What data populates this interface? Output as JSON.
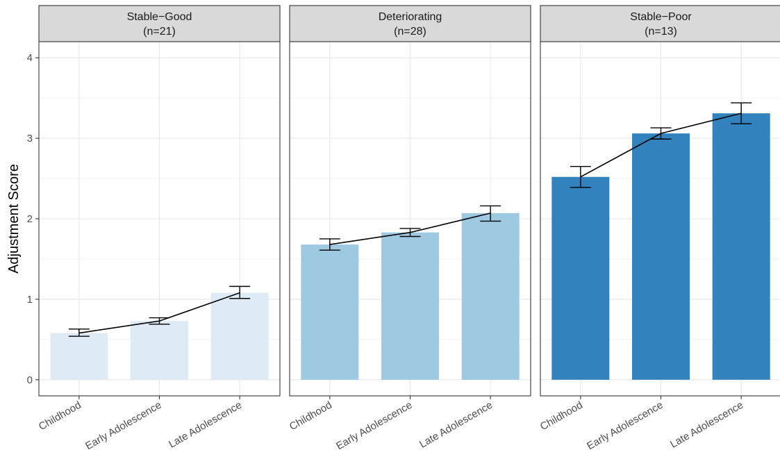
{
  "chart_data": {
    "type": "bar",
    "ylabel": "Adjustment Score",
    "xlabel": "",
    "ylim": [
      -0.2,
      4.2
    ],
    "yticks": [
      0,
      1,
      2,
      3,
      4
    ],
    "categories": [
      "Childhood",
      "Early Adolescence",
      "Late Adolescence"
    ],
    "grid": true,
    "legend": "none",
    "panels": [
      {
        "title": "Stable-Good",
        "subtitle": "(n=21)",
        "color": "#deebf7",
        "values": [
          0.58,
          0.73,
          1.08
        ],
        "error_low": [
          0.54,
          0.69,
          1.01
        ],
        "error_high": [
          0.63,
          0.77,
          1.16
        ]
      },
      {
        "title": "Deteriorating",
        "subtitle": "(n=28)",
        "color": "#9ecae1",
        "values": [
          1.68,
          1.83,
          2.07
        ],
        "error_low": [
          1.61,
          1.78,
          1.97
        ],
        "error_high": [
          1.75,
          1.88,
          2.16
        ]
      },
      {
        "title": "Stable-Poor",
        "subtitle": "(n=13)",
        "color": "#3182bd",
        "values": [
          2.52,
          3.06,
          3.31
        ],
        "error_low": [
          2.39,
          2.99,
          3.18
        ],
        "error_high": [
          2.65,
          3.13,
          3.44
        ]
      }
    ]
  }
}
